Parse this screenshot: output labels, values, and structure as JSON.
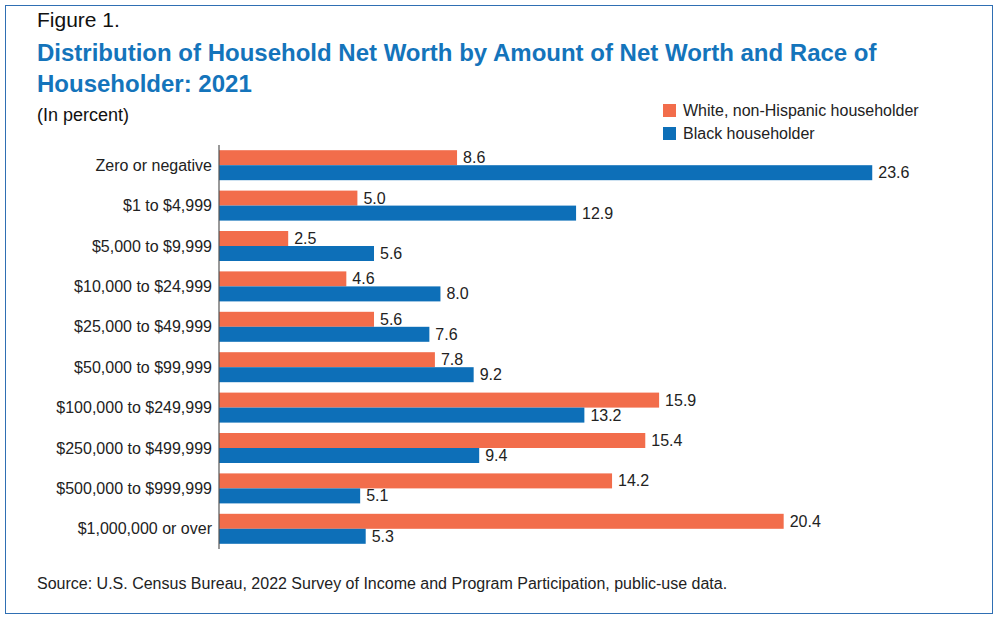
{
  "chart_data": {
    "type": "bar",
    "orientation": "horizontal",
    "title": "Distribution of Household Net Worth by Amount of Net Worth and Race of Householder: 2021",
    "subtitle": "(In percent)",
    "annotations": [
      "Figure 1.",
      "Source: U.S. Census Bureau, 2022 Survey of Income and Program Participation, public-use data."
    ],
    "categories": [
      "Zero or negative",
      "$1 to $4,999",
      "$5,000 to $9,999",
      "$10,000 to $24,999",
      "$25,000 to $49,999",
      "$50,000 to $99,999",
      "$100,000 to $249,999",
      "$250,000 to $499,999",
      "$500,000 to $999,999",
      "$1,000,000 or over"
    ],
    "series": [
      {
        "name": "White, non-Hispanic householder",
        "color": "#f26d4b",
        "values": [
          8.6,
          5.0,
          2.5,
          4.6,
          5.6,
          7.8,
          15.9,
          15.4,
          14.2,
          20.4
        ],
        "value_labels": [
          "8.6",
          "5.0",
          "2.5",
          "4.6",
          "5.6",
          "7.8",
          "15.9",
          "15.4",
          "14.2",
          "20.4"
        ]
      },
      {
        "name": "Black householder",
        "color": "#0d6fb8",
        "values": [
          23.6,
          12.9,
          5.6,
          8.0,
          7.6,
          9.2,
          13.2,
          9.4,
          5.1,
          5.3
        ],
        "value_labels": [
          "23.6",
          "12.9",
          "5.6",
          "8.0",
          "7.6",
          "9.2",
          "13.2",
          "9.4",
          "5.1",
          "5.3"
        ]
      }
    ],
    "xlim": [
      0,
      25
    ],
    "grid": false,
    "legend": "top-right",
    "data_labels": true,
    "tick_labels": "y"
  }
}
